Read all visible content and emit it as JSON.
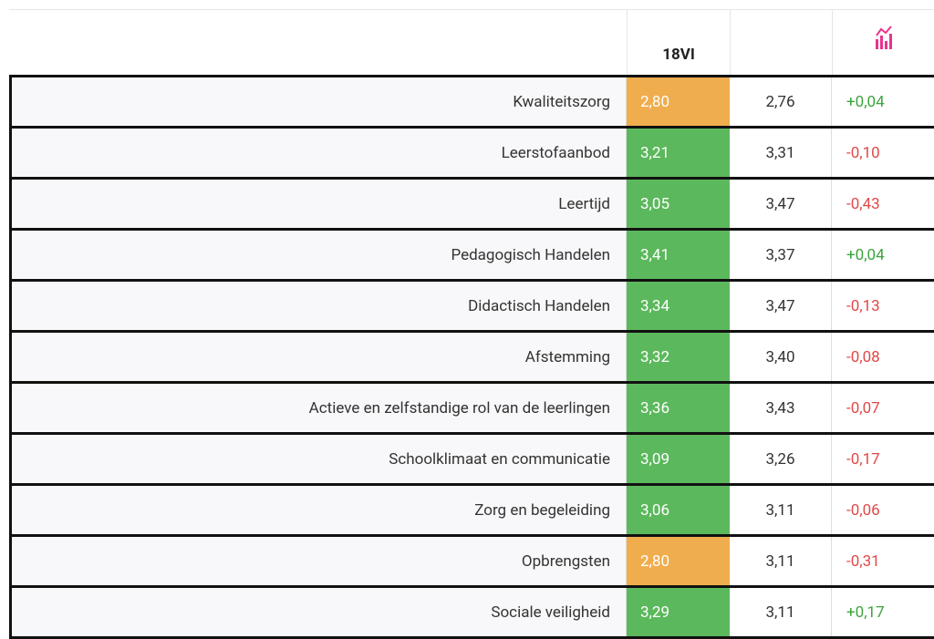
{
  "table": {
    "header": {
      "score": "18VI"
    },
    "rows": [
      {
        "label": "Kwaliteitszorg",
        "score": "2,80",
        "color": "#f0ad4e",
        "reference": "2,76",
        "difference": "+0,04"
      },
      {
        "label": "Leerstofaanbod",
        "score": "3,21",
        "color": "#5cb85c",
        "reference": "3,31",
        "difference": "-0,10"
      },
      {
        "label": "Leertijd",
        "score": "3,05",
        "color": "#5cb85c",
        "reference": "3,47",
        "difference": "-0,43"
      },
      {
        "label": "Pedagogisch Handelen",
        "score": "3,41",
        "color": "#5cb85c",
        "reference": "3,37",
        "difference": "+0,04"
      },
      {
        "label": "Didactisch Handelen",
        "score": "3,34",
        "color": "#5cb85c",
        "reference": "3,47",
        "difference": "-0,13"
      },
      {
        "label": "Afstemming",
        "score": "3,32",
        "color": "#5cb85c",
        "reference": "3,40",
        "difference": "-0,08"
      },
      {
        "label": "Actieve en zelfstandige rol van de leerlingen",
        "score": "3,36",
        "color": "#5cb85c",
        "reference": "3,43",
        "difference": "-0,07"
      },
      {
        "label": "Schoolklimaat en communicatie",
        "score": "3,09",
        "color": "#5cb85c",
        "reference": "3,26",
        "difference": "-0,17"
      },
      {
        "label": "Zorg en begeleiding",
        "score": "3,06",
        "color": "#5cb85c",
        "reference": "3,11",
        "difference": "-0,06"
      },
      {
        "label": "Opbrengsten",
        "score": "2,80",
        "color": "#f0ad4e",
        "reference": "3,11",
        "difference": "-0,31"
      },
      {
        "label": "Sociale veiligheid",
        "score": "3,29",
        "color": "#5cb85c",
        "reference": "3,11",
        "difference": "+0,17"
      }
    ]
  }
}
